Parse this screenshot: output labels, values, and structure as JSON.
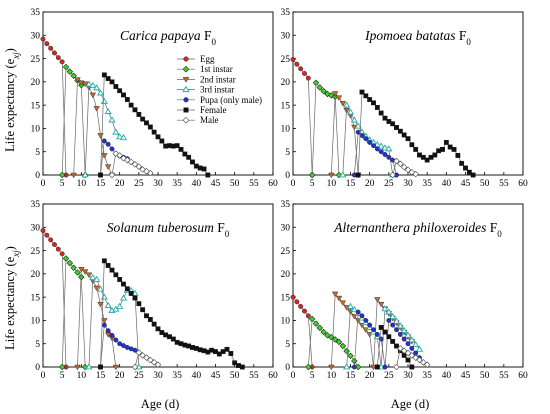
{
  "figure": {
    "ylabel": "Life expectancy (e",
    "ylabel_sub": "xj",
    "ylabel_end": ")",
    "xlabel": "Age (d)"
  },
  "legend": [
    {
      "label": "Egg",
      "color": "#dd2222",
      "marker": "circle",
      "fill": "#dd2222"
    },
    {
      "label": "1st instar",
      "color": "#33bb22",
      "marker": "diamond",
      "fill": "#33dd22"
    },
    {
      "label": "2nd instar",
      "color": "#cc6622",
      "marker": "triangle-down",
      "fill": "#cc6622"
    },
    {
      "label": "3rd instar",
      "color": "#22aaaa",
      "marker": "triangle-up",
      "fill": "none"
    },
    {
      "label": "Pupa (only male)",
      "color": "#2233cc",
      "marker": "circle",
      "fill": "#2233cc"
    },
    {
      "label": "Female",
      "color": "#111111",
      "marker": "square",
      "fill": "#111111"
    },
    {
      "label": "Male",
      "color": "#555555",
      "marker": "diamond",
      "fill": "#ffffff"
    }
  ],
  "chart_data": [
    {
      "type": "line",
      "title_italic": "Carica papaya",
      "title_normal": " F",
      "title_sub": "0",
      "xlim": [
        0,
        60
      ],
      "ylim": [
        0,
        35
      ],
      "xticks": [
        0,
        5,
        10,
        15,
        20,
        25,
        30,
        35,
        40,
        45,
        50,
        55,
        60
      ],
      "yticks": [
        0,
        5,
        10,
        15,
        20,
        25,
        30,
        35
      ],
      "series": [
        {
          "name": "Egg",
          "x": [
            0,
            1,
            2,
            3,
            4,
            5,
            6
          ],
          "y": [
            29.2,
            28.2,
            27.2,
            26.2,
            25.2,
            24.3,
            0
          ]
        },
        {
          "name": "1st instar",
          "x": [
            5,
            6,
            7,
            8,
            9,
            10,
            11
          ],
          "y": [
            0,
            23.2,
            22.2,
            21.3,
            20.3,
            19.3,
            0
          ]
        },
        {
          "name": "2nd instar",
          "x": [
            8,
            9,
            10,
            11,
            12,
            13,
            14,
            15,
            16,
            17,
            18
          ],
          "y": [
            0,
            20.5,
            19.8,
            19.6,
            18.8,
            17.2,
            14.3,
            8.5,
            4.2,
            1.8,
            0
          ]
        },
        {
          "name": "3rd instar",
          "x": [
            11,
            12,
            13,
            14,
            15,
            16,
            17,
            18,
            19,
            20,
            21
          ],
          "y": [
            0,
            19.5,
            19.2,
            18.7,
            17.6,
            15.8,
            13.6,
            11.8,
            9.2,
            8.2,
            8.0
          ]
        },
        {
          "name": "Pupa (only male)",
          "x": [
            15,
            16,
            17,
            18,
            19,
            20,
            21,
            22
          ],
          "y": [
            0,
            7.3,
            6.6,
            5.6,
            4.6,
            4.1,
            3.8,
            3.5
          ]
        },
        {
          "name": "Female",
          "x": [
            15,
            16,
            17,
            18,
            19,
            20,
            21,
            22,
            23,
            24,
            25,
            26,
            27,
            28,
            29,
            30,
            31,
            32,
            33,
            34,
            35,
            36,
            37,
            38,
            39,
            40,
            41,
            42,
            43
          ],
          "y": [
            0,
            21.5,
            20.7,
            20.0,
            19.0,
            18.1,
            17.2,
            16.2,
            15.0,
            14.0,
            13.0,
            12.0,
            11.2,
            10.3,
            9.2,
            8.2,
            7.3,
            6.2,
            6.3,
            6.2,
            6.3,
            5.5,
            4.5,
            3.8,
            2.8,
            1.9,
            1.5,
            1.3,
            0
          ]
        },
        {
          "name": "Male",
          "x": [
            18,
            19,
            20,
            21,
            22,
            23,
            24,
            25,
            26,
            27,
            28
          ],
          "y": [
            0,
            4.6,
            4.2,
            3.6,
            3.2,
            2.8,
            2.3,
            1.8,
            1.2,
            0.8,
            0.4
          ]
        }
      ]
    },
    {
      "type": "line",
      "title_italic": "Ipomoea batatas",
      "title_normal": " F",
      "title_sub": "0",
      "xlim": [
        0,
        60
      ],
      "ylim": [
        0,
        35
      ],
      "xticks": [
        0,
        5,
        10,
        15,
        20,
        25,
        30,
        35,
        40,
        45,
        50,
        55,
        60
      ],
      "yticks": [
        0,
        5,
        10,
        15,
        20,
        25,
        30,
        35
      ],
      "series": [
        {
          "name": "Egg",
          "x": [
            0,
            1,
            2,
            3,
            4,
            5
          ],
          "y": [
            24.8,
            23.8,
            22.8,
            21.8,
            20.8,
            0
          ]
        },
        {
          "name": "1st instar",
          "x": [
            5,
            6,
            7,
            8,
            9,
            10,
            11,
            12
          ],
          "y": [
            0,
            19.8,
            18.8,
            18.0,
            17.4,
            17.1,
            16.8,
            0
          ]
        },
        {
          "name": "2nd instar",
          "x": [
            10,
            11,
            12,
            13,
            14,
            15,
            16,
            17
          ],
          "y": [
            0,
            17.5,
            16.6,
            15.4,
            13.9,
            12.8,
            10.3,
            0
          ]
        },
        {
          "name": "3rd instar",
          "x": [
            13,
            14,
            15,
            16,
            17,
            18,
            19,
            20,
            21,
            22,
            23,
            24,
            25,
            26
          ],
          "y": [
            0,
            15.0,
            13.5,
            11.8,
            10.5,
            9.2,
            8.3,
            7.5,
            7.0,
            6.5,
            6.2,
            5.8,
            5.6,
            0
          ]
        },
        {
          "name": "Pupa (only male)",
          "x": [
            16,
            17,
            18,
            19,
            20,
            21,
            22,
            23,
            24,
            25,
            26,
            27
          ],
          "y": [
            0,
            9.2,
            8.5,
            7.8,
            7.0,
            6.3,
            5.6,
            5.0,
            4.4,
            3.8,
            3.2,
            0
          ]
        },
        {
          "name": "Female",
          "x": [
            17,
            18,
            19,
            20,
            21,
            22,
            23,
            24,
            25,
            26,
            27,
            28,
            29,
            30,
            31,
            32,
            33,
            34,
            35,
            36,
            37,
            38,
            39,
            40,
            41,
            42,
            43,
            44,
            45,
            46,
            47
          ],
          "y": [
            0,
            17.8,
            17.0,
            16.2,
            15.5,
            14.5,
            13.3,
            12.2,
            11.5,
            11.0,
            10.2,
            9.4,
            8.6,
            7.8,
            6.5,
            5.5,
            4.3,
            3.8,
            3.2,
            3.8,
            4.3,
            5.2,
            5.5,
            7.0,
            6.0,
            5.5,
            4.2,
            2.5,
            1.5,
            0.6,
            0
          ]
        },
        {
          "name": "Male",
          "x": [
            26,
            27,
            28,
            29,
            30,
            31,
            32
          ],
          "y": [
            0,
            3.0,
            2.4,
            1.7,
            1.1,
            0.6,
            0.2
          ]
        }
      ]
    },
    {
      "type": "line",
      "title_italic": "Solanum tuberosum",
      "title_normal": " F",
      "title_sub": "0",
      "xlim": [
        0,
        60
      ],
      "ylim": [
        0,
        35
      ],
      "xticks": [
        0,
        5,
        10,
        15,
        20,
        25,
        30,
        35,
        40,
        45,
        50,
        55,
        60
      ],
      "yticks": [
        0,
        5,
        10,
        15,
        20,
        25,
        30,
        35
      ],
      "series": [
        {
          "name": "Egg",
          "x": [
            0,
            1,
            2,
            3,
            4,
            5,
            6
          ],
          "y": [
            29.3,
            28.3,
            27.3,
            26.3,
            25.3,
            24.3,
            0
          ]
        },
        {
          "name": "1st instar",
          "x": [
            5,
            6,
            7,
            8,
            9,
            10,
            11
          ],
          "y": [
            0,
            23.3,
            22.3,
            21.3,
            20.3,
            19.3,
            0
          ]
        },
        {
          "name": "2nd instar",
          "x": [
            9,
            10,
            11,
            12,
            13,
            14,
            15,
            16,
            17,
            18,
            19
          ],
          "y": [
            0,
            21.0,
            20.5,
            19.8,
            18.5,
            17.0,
            13.5,
            10.0,
            7.0,
            6.2,
            0
          ]
        },
        {
          "name": "3rd instar",
          "x": [
            12,
            13,
            14,
            15,
            16,
            17,
            18,
            19,
            20,
            21,
            22,
            23,
            24,
            25
          ],
          "y": [
            0,
            19.2,
            18.8,
            16.7,
            15.0,
            13.2,
            12.1,
            12.4,
            13.0,
            14.8,
            16.5,
            16.4,
            15.8,
            0
          ]
        },
        {
          "name": "Pupa (only male)",
          "x": [
            15,
            16,
            17,
            18,
            19,
            20,
            21,
            22,
            23,
            24
          ],
          "y": [
            0,
            9.0,
            7.8,
            6.8,
            5.8,
            5.0,
            4.6,
            4.2,
            3.9,
            3.6
          ]
        },
        {
          "name": "Female",
          "x": [
            15,
            16,
            17,
            18,
            19,
            20,
            21,
            22,
            23,
            24,
            25,
            26,
            27,
            28,
            29,
            30,
            31,
            32,
            33,
            34,
            35,
            36,
            37,
            38,
            39,
            40,
            41,
            42,
            43,
            44,
            45,
            46,
            47,
            48,
            49,
            50,
            51,
            52
          ],
          "y": [
            0,
            22.8,
            21.8,
            20.8,
            19.8,
            18.8,
            17.8,
            16.8,
            15.8,
            14.8,
            13.6,
            12.3,
            11.0,
            10.2,
            9.2,
            8.2,
            7.4,
            6.9,
            6.5,
            6.0,
            5.3,
            5.0,
            4.7,
            4.5,
            4.2,
            4.0,
            3.7,
            3.5,
            3.2,
            3.6,
            3.3,
            2.8,
            3.3,
            3.8,
            2.9,
            0.9,
            0.3,
            0
          ]
        },
        {
          "name": "Male",
          "x": [
            24,
            25,
            26,
            27,
            28,
            29,
            30
          ],
          "y": [
            0,
            3.1,
            2.5,
            2.0,
            1.5,
            1.0,
            0.5
          ]
        }
      ]
    },
    {
      "type": "line",
      "title_italic": "Alternanthera philoxeroides",
      "title_normal": " F",
      "title_sub": "0",
      "xlim": [
        0,
        60
      ],
      "ylim": [
        0,
        35
      ],
      "xticks": [
        0,
        5,
        10,
        15,
        20,
        25,
        30,
        35,
        40,
        45,
        50,
        55,
        60
      ],
      "yticks": [
        0,
        5,
        10,
        15,
        20,
        25,
        30,
        35
      ],
      "series": [
        {
          "name": "Egg",
          "x": [
            0,
            1,
            2,
            3,
            4,
            5
          ],
          "y": [
            15.0,
            14.0,
            13.0,
            12.0,
            11.0,
            0
          ]
        },
        {
          "name": "1st instar",
          "x": [
            4,
            5,
            6,
            7,
            8,
            9,
            10,
            11,
            12,
            13,
            14,
            15,
            16,
            17
          ],
          "y": [
            0,
            10.3,
            9.3,
            8.4,
            7.5,
            6.8,
            6.4,
            5.9,
            5.4,
            4.5,
            3.4,
            2.4,
            1.3,
            0
          ]
        },
        {
          "name": "2nd instar",
          "x": [
            10,
            11,
            12,
            13,
            14,
            15,
            16,
            17,
            18,
            19,
            20,
            21,
            22,
            23,
            24,
            25,
            26,
            27,
            28,
            29,
            30,
            31
          ],
          "y": [
            0,
            15.7,
            14.8,
            13.8,
            12.8,
            11.9,
            10.9,
            10.0,
            9.0,
            8.0,
            7.0,
            0,
            14.5,
            13.5,
            12.5,
            11.5,
            10.5,
            9.5,
            8.5,
            7.5,
            6.5,
            5.5
          ]
        },
        {
          "name": "3rd instar",
          "x": [
            14,
            15,
            16,
            17,
            18,
            19,
            20,
            21,
            22,
            23,
            24,
            25,
            26,
            27,
            28,
            29,
            30,
            31,
            32,
            33
          ],
          "y": [
            0,
            13.0,
            12.3,
            11.5,
            10.5,
            9.5,
            8.5,
            7.5,
            6.5,
            0,
            12.5,
            11.8,
            10.8,
            9.8,
            8.8,
            7.8,
            6.8,
            5.8,
            4.8,
            3.8
          ]
        },
        {
          "name": "Pupa (only male)",
          "x": [
            16,
            17,
            18,
            19,
            20,
            21,
            22,
            23,
            24,
            25,
            26,
            27,
            28,
            29,
            30,
            31,
            32,
            33
          ],
          "y": [
            0,
            11.8,
            11.0,
            10.0,
            9.0,
            8.0,
            7.0,
            6.0,
            0,
            10.0,
            9.0,
            8.0,
            7.0,
            6.0,
            5.0,
            4.0,
            3.0,
            2.0
          ]
        },
        {
          "name": "Female",
          "x": [
            22,
            23,
            24,
            25,
            26,
            27,
            28,
            29,
            30,
            31
          ],
          "y": [
            0,
            8.5,
            7.5,
            6.5,
            5.5,
            4.5,
            3.5,
            2.5,
            1.5,
            0
          ]
        },
        {
          "name": "Male",
          "x": [
            27,
            28,
            29,
            30,
            31,
            32,
            33,
            34,
            35
          ],
          "y": [
            0,
            4.0,
            3.5,
            3.0,
            2.5,
            2.0,
            1.5,
            1.0,
            0.5
          ]
        }
      ]
    }
  ]
}
